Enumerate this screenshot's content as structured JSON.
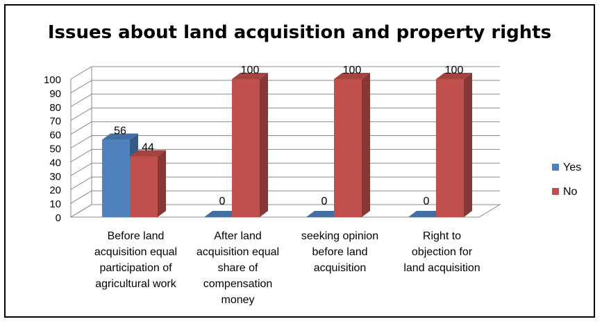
{
  "chart_data": {
    "type": "bar",
    "title": "Issues about land acquisition and property rights",
    "categories": [
      [
        "Before land",
        "acquisition equal",
        "participation of",
        "agricultural work"
      ],
      [
        "After land",
        "acquisition equal",
        "share of",
        "compensation",
        "money"
      ],
      [
        "seeking opinion",
        "before land",
        "acquisition"
      ],
      [
        "Right to",
        "objection for",
        "land acquisition"
      ]
    ],
    "series": [
      {
        "name": "Yes",
        "values": [
          56,
          0,
          0,
          0
        ],
        "color": "#4f81bd"
      },
      {
        "name": "No",
        "values": [
          44,
          100,
          100,
          100
        ],
        "color": "#c0504d"
      }
    ],
    "data_labels": [
      [
        "56",
        "0",
        "0",
        "0"
      ],
      [
        "44",
        "100",
        "100",
        "100"
      ]
    ],
    "y_ticks": [
      "0",
      "10",
      "20",
      "30",
      "40",
      "50",
      "60",
      "70",
      "80",
      "90",
      "100"
    ],
    "ylim": [
      0,
      100
    ],
    "grid": true,
    "legend": "right",
    "style": "3d-clustered-column"
  }
}
